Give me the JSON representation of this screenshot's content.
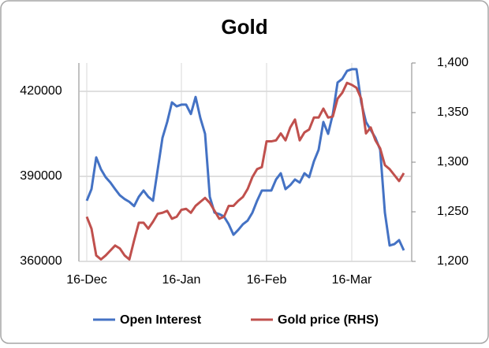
{
  "chart_data": {
    "type": "line",
    "title": "Gold",
    "categories": [
      "16-Dec",
      null,
      null,
      null,
      null,
      null,
      null,
      null,
      null,
      null,
      null,
      null,
      null,
      null,
      null,
      null,
      null,
      null,
      null,
      null,
      "16-Jan",
      null,
      null,
      null,
      null,
      null,
      null,
      null,
      null,
      null,
      null,
      null,
      null,
      null,
      null,
      null,
      null,
      null,
      "16-Feb",
      null,
      null,
      null,
      null,
      null,
      null,
      null,
      null,
      null,
      null,
      null,
      null,
      null,
      null,
      null,
      null,
      null,
      "16-Mar",
      null,
      null,
      null,
      null,
      null,
      null,
      null,
      null,
      null,
      null,
      null
    ],
    "series": [
      {
        "name": "Open Interest",
        "color": "#4472c4",
        "axis": "y",
        "values": [
          381400,
          385500,
          396700,
          392500,
          389700,
          387800,
          385500,
          383300,
          382000,
          381000,
          379500,
          382800,
          385000,
          382800,
          381400,
          392500,
          403600,
          409200,
          416100,
          414700,
          415300,
          415300,
          412000,
          418000,
          410600,
          405000,
          382800,
          377200,
          376700,
          375800,
          373100,
          369400,
          371100,
          373100,
          374400,
          377200,
          381400,
          385000,
          385000,
          385000,
          388900,
          391100,
          385500,
          386900,
          388900,
          387800,
          391100,
          389700,
          395300,
          399400,
          409200,
          405000,
          412000,
          423100,
          424400,
          427200,
          427800,
          427800,
          416100,
          409200,
          406400,
          403600,
          399400,
          377200,
          365600,
          366100,
          367500,
          363900
        ]
      },
      {
        "name": "Gold price (RHS)",
        "color": "#c0504d",
        "axis": "y2",
        "values": [
          1245,
          1233,
          1206,
          1202,
          1206,
          1211,
          1216,
          1213,
          1206,
          1202,
          1221,
          1239,
          1239,
          1233,
          1240,
          1248,
          1249,
          1251,
          1243,
          1245,
          1252,
          1253,
          1249,
          1256,
          1260,
          1264,
          1259,
          1251,
          1243,
          1245,
          1256,
          1256,
          1261,
          1265,
          1273,
          1285,
          1293,
          1295,
          1321,
          1321,
          1322,
          1329,
          1322,
          1335,
          1343,
          1322,
          1330,
          1333,
          1345,
          1345,
          1354,
          1345,
          1346,
          1364,
          1370,
          1380,
          1378,
          1375,
          1364,
          1329,
          1335,
          1322,
          1314,
          1297,
          1293,
          1287,
          1281,
          1289
        ]
      }
    ],
    "ylim": [
      360000,
      430000
    ],
    "yticks": [
      360000,
      390000,
      420000
    ],
    "y2lim": [
      1200,
      1400
    ],
    "y2ticks": [
      {
        "value": 1200,
        "label": "1,200"
      },
      {
        "value": 1250,
        "label": "1,250"
      },
      {
        "value": 1300,
        "label": "1,300"
      },
      {
        "value": 1350,
        "label": "1,350"
      },
      {
        "value": 1400,
        "label": "1,400"
      }
    ],
    "grid": true,
    "legend": "bottom"
  }
}
